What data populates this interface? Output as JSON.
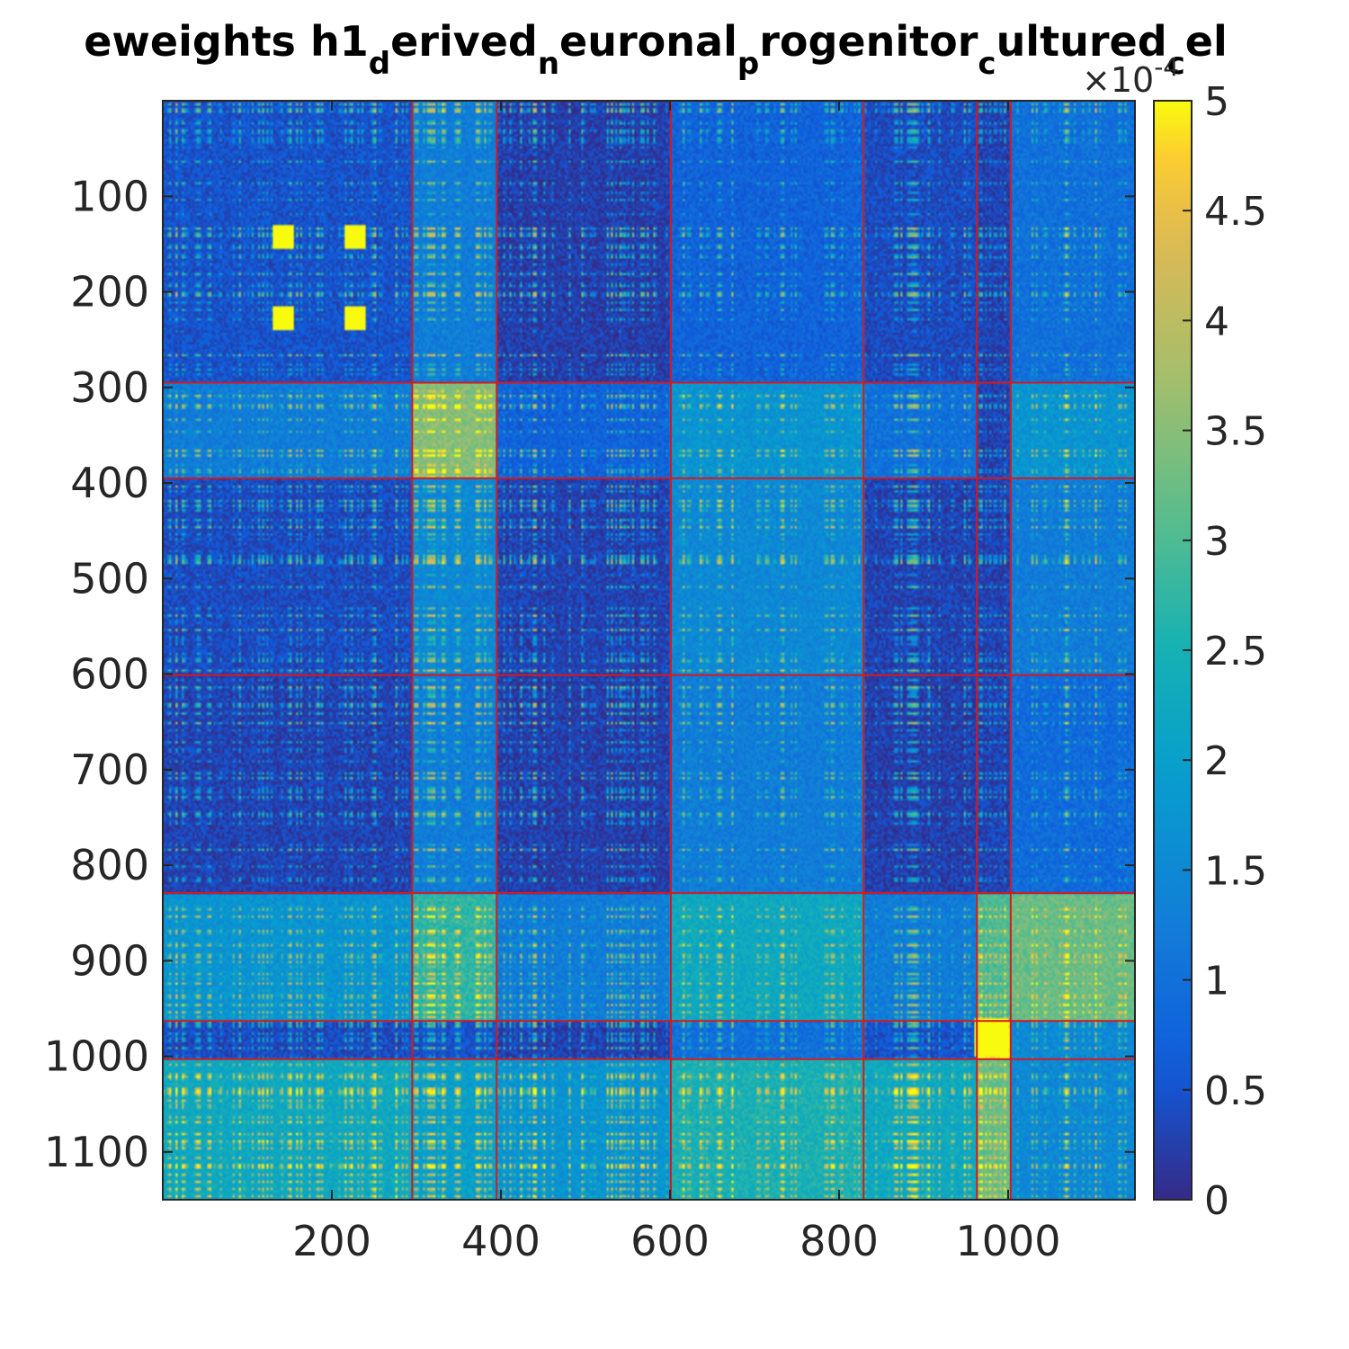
{
  "chart_data": {
    "type": "heatmap",
    "title": {
      "parts": [
        {
          "text": "eweights h1",
          "sub": false
        },
        {
          "text": "d",
          "sub": true
        },
        {
          "text": "erived",
          "sub": false
        },
        {
          "text": "n",
          "sub": true
        },
        {
          "text": "euronal",
          "sub": false
        },
        {
          "text": "p",
          "sub": true
        },
        {
          "text": "rogenitor",
          "sub": false
        },
        {
          "text": "c",
          "sub": true
        },
        {
          "text": "ultured",
          "sub": false
        },
        {
          "text": "c",
          "sub": true
        },
        {
          "text": "el",
          "sub": false
        }
      ]
    },
    "matrix_size": 1150,
    "x_ticks": [
      200,
      400,
      600,
      800,
      1000
    ],
    "x_tick_labels": [
      "200",
      "400",
      "600",
      "800",
      "1000"
    ],
    "y_ticks": [
      100,
      200,
      300,
      400,
      500,
      600,
      700,
      800,
      900,
      1000,
      1100
    ],
    "y_tick_labels": [
      "100",
      "200",
      "300",
      "400",
      "500",
      "600",
      "700",
      "800",
      "900",
      "1000",
      "1100"
    ],
    "y_reversed": true,
    "block_boundaries": [
      295,
      395,
      601,
      829,
      963,
      1003
    ],
    "colorbar": {
      "colormap": "parula",
      "clim": [
        0,
        5
      ],
      "ticks": [
        0,
        0.5,
        1,
        1.5,
        2,
        2.5,
        3,
        3.5,
        4,
        4.5,
        5
      ],
      "tick_labels": [
        "0",
        "0.5",
        "1",
        "1.5",
        "2",
        "2.5",
        "3",
        "3.5",
        "4",
        "4.5",
        "5"
      ],
      "exponent_label": {
        "base": "×10",
        "exp": "-4"
      }
    },
    "hot_blocks": [
      {
        "x": [
          130,
          155
        ],
        "y": [
          130,
          155
        ]
      },
      {
        "x": [
          215,
          240
        ],
        "y": [
          130,
          155
        ]
      },
      {
        "x": [
          130,
          155
        ],
        "y": [
          215,
          240
        ]
      },
      {
        "x": [
          215,
          240
        ],
        "y": [
          215,
          240
        ]
      },
      {
        "x": [
          960,
          1000
        ],
        "y": [
          960,
          1000
        ]
      }
    ],
    "colors": {
      "boundary_line": "#d7191c",
      "axis": "#262626",
      "text": "#262626"
    }
  }
}
